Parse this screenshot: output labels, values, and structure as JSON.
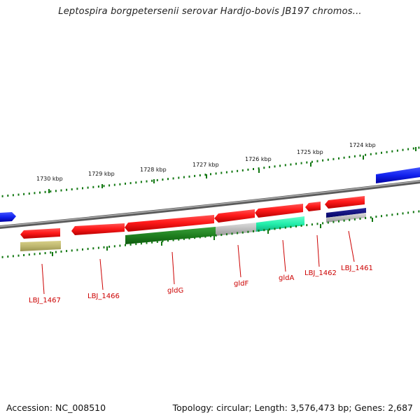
{
  "title": "Leptospira borgpetersenii serovar Hardjo-bovis JB197 chromos...",
  "footer": {
    "accession": "Accession: NC_008510",
    "topology": "Topology: circular; Length: 3,576,473 bp; Genes: 2,687"
  },
  "colors": {
    "forward_gene": "#ee1111",
    "blue_gene": "#1122ee",
    "backbone": "#888888",
    "tick": "#117711",
    "label": "#cc0000"
  },
  "kbp_labels": [
    "1730 kbp",
    "1729 kbp",
    "1728 kbp",
    "1727 kbp",
    "1726 kbp",
    "1725 kbp",
    "1724 kbp"
  ],
  "gene_labels": [
    "LBJ_1467",
    "LBJ_1466",
    "gldG",
    "gldF",
    "gldA",
    "LBJ_1462",
    "LBJ_1461"
  ]
}
